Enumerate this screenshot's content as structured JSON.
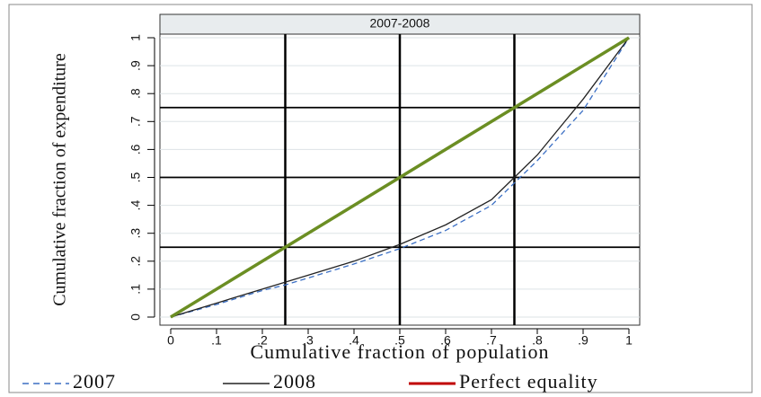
{
  "chart_data": {
    "type": "line",
    "title": "2007-2008",
    "xlabel": "Cumulative fraction of population",
    "ylabel": "Cumulative fraction of expenditure",
    "xlim": [
      0,
      1
    ],
    "ylim": [
      0,
      1
    ],
    "xticks": [
      0,
      {
        "value": 0.1,
        "label": ".1"
      },
      {
        "value": 0.2,
        "label": ".2"
      },
      {
        "value": 0.3,
        "label": ".3"
      },
      {
        "value": 0.4,
        "label": ".4"
      },
      {
        "value": 0.5,
        "label": ".5"
      },
      {
        "value": 0.6,
        "label": ".6"
      },
      {
        "value": 0.7,
        "label": ".7"
      },
      {
        "value": 0.8,
        "label": ".8"
      },
      {
        "value": 0.9,
        "label": ".9"
      },
      1
    ],
    "yticks": [
      0,
      {
        "value": 0.1,
        "label": ".1"
      },
      {
        "value": 0.2,
        "label": ".2"
      },
      {
        "value": 0.3,
        "label": ".3"
      },
      {
        "value": 0.4,
        "label": ".4"
      },
      {
        "value": 0.5,
        "label": ".5"
      },
      {
        "value": 0.6,
        "label": ".6"
      },
      {
        "value": 0.7,
        "label": ".7"
      },
      {
        "value": 0.8,
        "label": ".8"
      },
      {
        "value": 0.9,
        "label": ".9"
      },
      1
    ],
    "grid": true,
    "reference_lines": [
      0.25,
      0.5,
      0.75
    ],
    "legend": "bottom",
    "series": [
      {
        "name": "2007",
        "color": "#3b6fc4",
        "dash": true,
        "x": [
          0,
          0.1,
          0.2,
          0.25,
          0.3,
          0.4,
          0.5,
          0.6,
          0.7,
          0.75,
          0.8,
          0.9,
          1
        ],
        "values": [
          0,
          0.045,
          0.095,
          0.115,
          0.14,
          0.19,
          0.245,
          0.31,
          0.4,
          0.48,
          0.56,
          0.74,
          1
        ]
      },
      {
        "name": "2008",
        "color": "#222222",
        "x": [
          0,
          0.1,
          0.2,
          0.25,
          0.3,
          0.4,
          0.5,
          0.6,
          0.7,
          0.75,
          0.8,
          0.9,
          1
        ],
        "values": [
          0,
          0.05,
          0.1,
          0.125,
          0.15,
          0.2,
          0.26,
          0.33,
          0.42,
          0.5,
          0.58,
          0.78,
          1
        ]
      },
      {
        "name": "Perfect equality",
        "color": "#c00000",
        "plot_color": "#6b8e23",
        "x": [
          0,
          1
        ],
        "values": [
          0,
          1
        ]
      }
    ]
  }
}
